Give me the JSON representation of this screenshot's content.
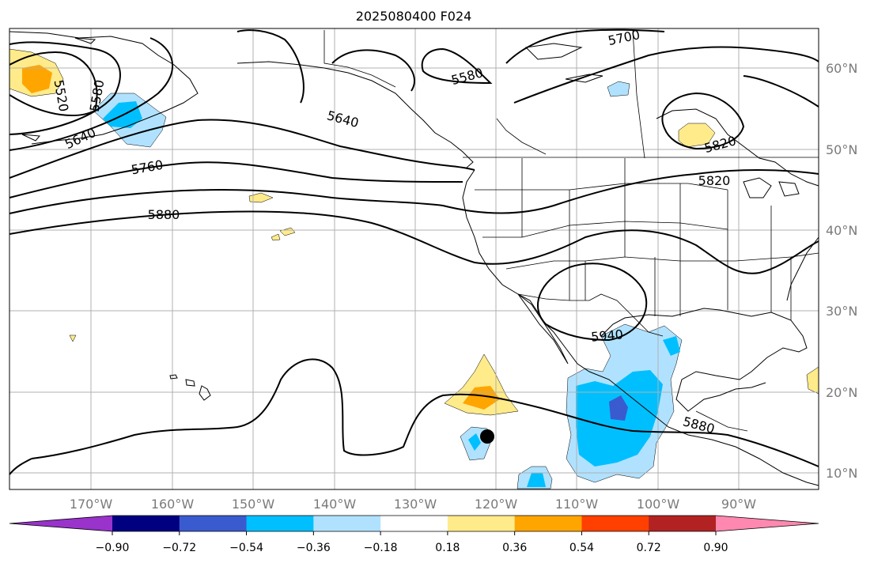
{
  "title": "2025080400 F024",
  "map": {
    "lon_labels": [
      "170°W",
      "160°W",
      "150°W",
      "140°W",
      "130°W",
      "120°W",
      "110°W",
      "100°W",
      "90°W"
    ],
    "lat_labels": [
      "60°N",
      "50°N",
      "40°N",
      "30°N",
      "20°N",
      "10°N"
    ],
    "contour_labels": [
      "5520",
      "5580",
      "5640",
      "5760",
      "5880",
      "5640",
      "5580",
      "5700",
      "5820",
      "5820",
      "5940",
      "5880"
    ],
    "storm_marker": "black-dot"
  },
  "colorbar": {
    "ticks": [
      "−0.90",
      "−0.72",
      "−0.54",
      "−0.36",
      "−0.18",
      "0.18",
      "0.36",
      "0.54",
      "0.72",
      "0.90"
    ],
    "colors": [
      "#9933cc",
      "#000080",
      "#3a5bcf",
      "#00bfff",
      "#b0e2ff",
      "#ffffff",
      "#ffeb8a",
      "#ffa500",
      "#ff4000",
      "#b22222",
      "#ff88b0"
    ]
  }
}
